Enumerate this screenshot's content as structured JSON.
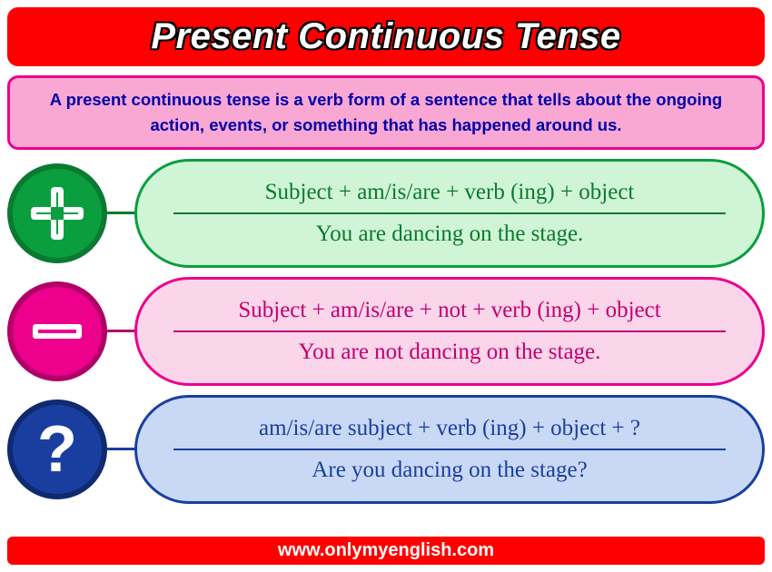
{
  "header": {
    "title": "Present Continuous Tense"
  },
  "definition": {
    "text": "A present continuous tense is a verb form of a sentence that tells about the ongoing action, events, or something that has happened around us."
  },
  "rows": [
    {
      "kind": "affirmative",
      "icon": "plus",
      "formula": "Subject + am/is/are + verb (ing) + object",
      "example": "You are dancing on the stage.",
      "colors": {
        "icon_bg": "#0a9e3f",
        "icon_border": "#0a7a30",
        "panel_bg": "#d0f5d6",
        "text": "#0a7a30"
      }
    },
    {
      "kind": "negative",
      "icon": "minus",
      "formula": "Subject + am/is/are + not + verb (ing) + object",
      "example": "You are not dancing on the stage.",
      "colors": {
        "icon_bg": "#ec008c",
        "icon_border": "#b00068",
        "panel_bg": "#fbd5ea",
        "text": "#c2006f"
      }
    },
    {
      "kind": "interrogative",
      "icon": "question",
      "formula": "am/is/are subject + verb (ing) + object + ?",
      "example": "Are you dancing on the stage?",
      "colors": {
        "icon_bg": "#1a3ea0",
        "icon_border": "#102a70",
        "panel_bg": "#c9d9f5",
        "text": "#1a3ea0"
      }
    }
  ],
  "footer": {
    "url": "www.onlymyenglish.com"
  },
  "palette": {
    "header_bg": "#ff0000",
    "header_text": "#ffffff",
    "definition_bg": "#f9a8d4",
    "definition_border": "#ec008c",
    "definition_text": "#0000aa",
    "page_bg": "#ffffff"
  },
  "typography": {
    "title_fontsize": 40,
    "definition_fontsize": 18.5,
    "formula_fontsize": 25,
    "footer_fontsize": 20
  }
}
